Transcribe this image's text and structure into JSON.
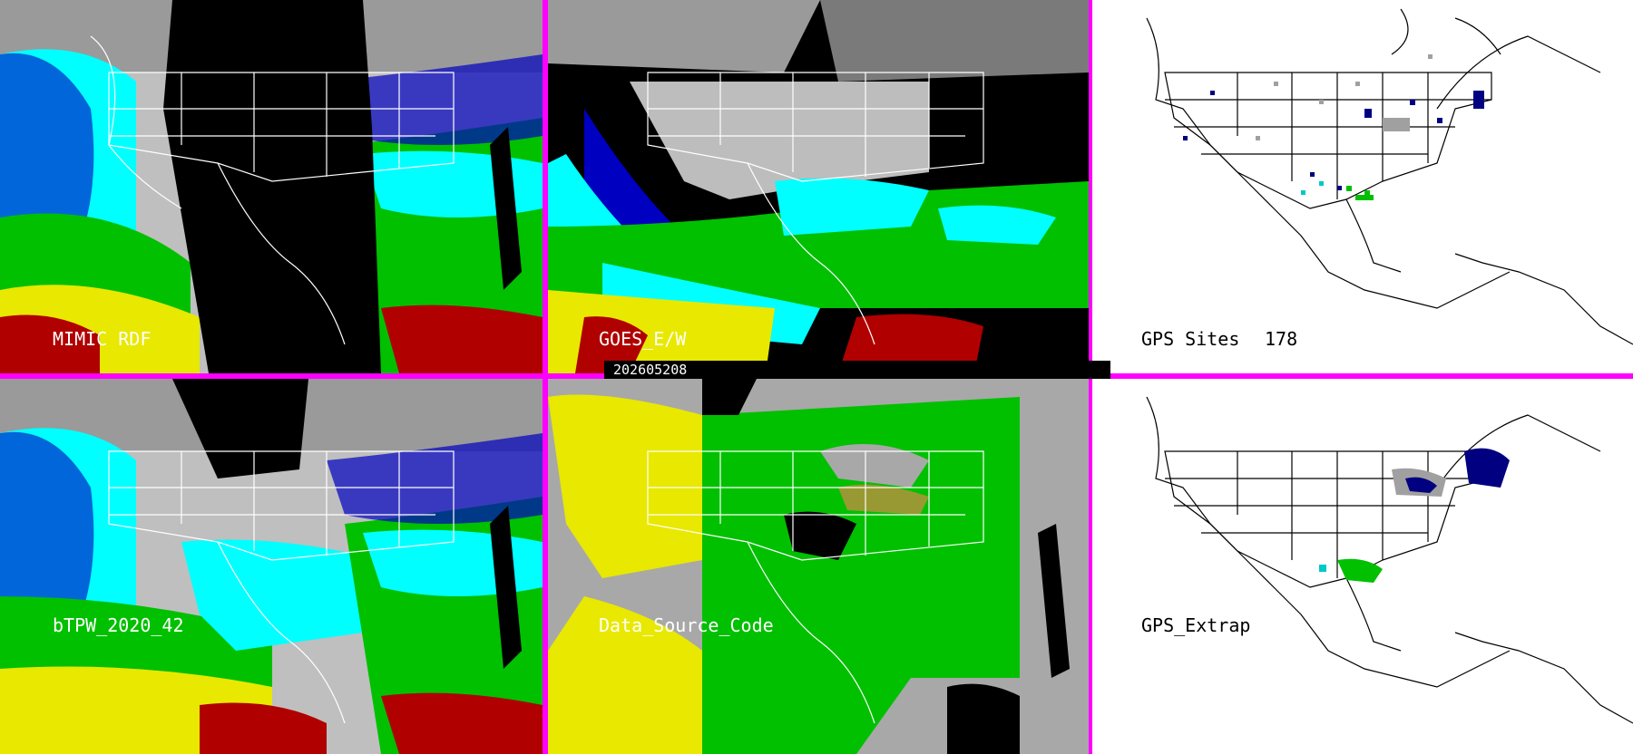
{
  "timestamp": "202605208",
  "panels": {
    "mimic": {
      "label": "MIMIC RDF"
    },
    "goes": {
      "label": "GOES_E/W"
    },
    "gps_sites": {
      "label": "GPS Sites",
      "count": "178"
    },
    "btpw": {
      "label": "bTPW_2020_42"
    },
    "source": {
      "label": "Data_Source_Code"
    },
    "gps_extrap": {
      "label": "GPS_Extrap"
    }
  },
  "colors": {
    "frame": "#ff00ff",
    "dark_red": "#b00000",
    "yellow": "#e8e800",
    "green": "#00c000",
    "cyan": "#00ffff",
    "blue": "#0000c0",
    "gray": "#a0a0a0",
    "black": "#000000",
    "white": "#ffffff"
  }
}
